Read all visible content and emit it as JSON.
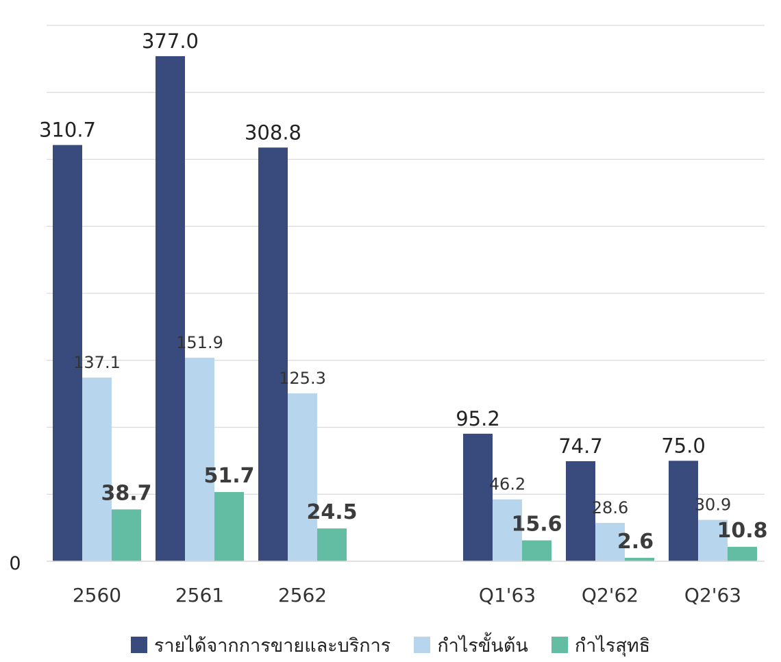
{
  "chart_data": {
    "type": "bar",
    "title": "",
    "xlabel": "",
    "ylabel": "",
    "categories": [
      "2560",
      "2561",
      "2562",
      "",
      "Q1'63",
      "Q2'62",
      "Q2'63"
    ],
    "series": [
      {
        "name": "รายได้จากการขายและบริการ",
        "color": "#394B7D",
        "values": [
          310.7,
          377.0,
          308.8,
          null,
          95.2,
          74.7,
          75.0
        ],
        "labels": [
          "310.7",
          "377.0",
          "308.8",
          "",
          "95.2",
          "74.7",
          "75.0"
        ]
      },
      {
        "name": "กำไรขั้นต้น",
        "color": "#B8D5EE",
        "values": [
          137.1,
          151.9,
          125.3,
          null,
          46.2,
          28.6,
          30.9
        ],
        "labels": [
          "137.1",
          "151.9",
          "125.3",
          "",
          "46.2",
          "28.6",
          "30.9"
        ]
      },
      {
        "name": "กำไรสุทธิ",
        "color": "#63BDA2",
        "values": [
          38.7,
          51.7,
          24.5,
          null,
          15.6,
          2.6,
          10.8
        ],
        "labels": [
          "38.7",
          "51.7",
          "24.5",
          "",
          "15.6",
          "2.6",
          "10.8"
        ]
      }
    ],
    "y_axis_tick_label": "0",
    "ylim": [
      0,
      400
    ],
    "grid": true,
    "legend_position": "bottom"
  },
  "legend": {
    "items": [
      {
        "label": "รายได้จากการขายและบริการ",
        "color": "#394B7D"
      },
      {
        "label": "กำไรขั้นต้น",
        "color": "#B8D5EE"
      },
      {
        "label": "กำไรสุทธิ",
        "color": "#63BDA2"
      }
    ]
  }
}
